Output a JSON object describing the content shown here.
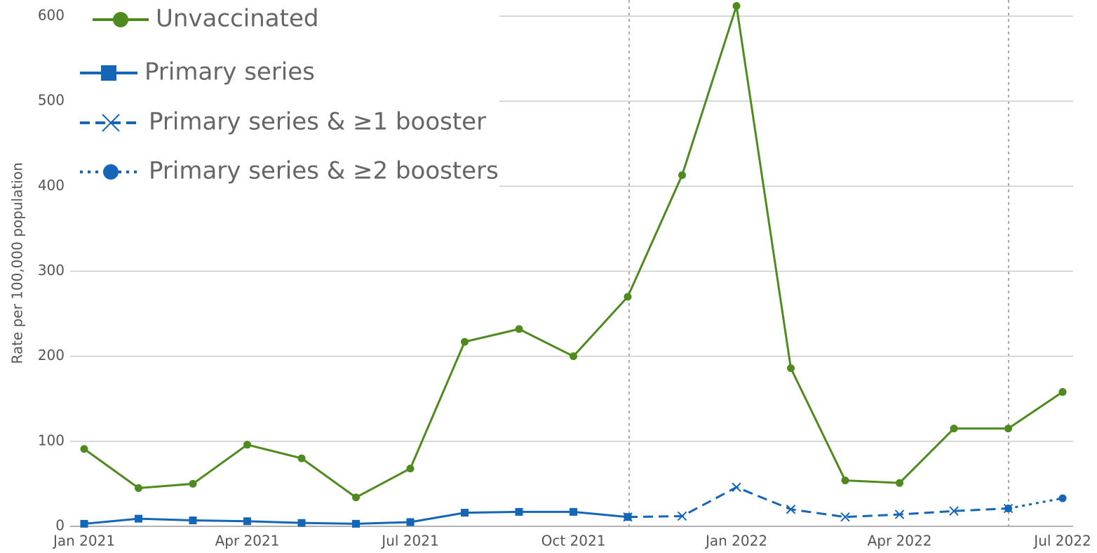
{
  "chart_data": {
    "type": "line",
    "y_label": "Rate per 100,000 population",
    "categories": [
      "Jan 2021",
      null,
      null,
      "Apr 2021",
      null,
      null,
      "Jul 2021",
      null,
      null,
      "Oct 2021",
      null,
      null,
      "Jan 2022",
      null,
      null,
      "Apr 2022",
      null,
      null,
      "Jul 2022"
    ],
    "series": [
      {
        "name": "Unvaccinated",
        "color": "#4f8a1f",
        "style": "solid",
        "marker": "circle",
        "values": [
          91,
          45,
          50,
          96,
          80,
          34,
          68,
          217,
          232,
          200,
          270,
          413,
          612,
          186,
          54,
          51,
          115,
          115,
          158
        ]
      },
      {
        "name": "Primary series",
        "color": "#1565b8",
        "style": "solid",
        "marker": "square",
        "values": [
          3,
          9,
          7,
          6,
          4,
          3,
          5,
          16,
          17,
          17,
          11,
          null,
          null,
          null,
          null,
          null,
          null,
          null,
          null
        ]
      },
      {
        "name": "Primary series & ≥1 booster",
        "color": "#1565b8",
        "style": "dashed",
        "marker": "x",
        "values": [
          null,
          null,
          null,
          null,
          null,
          null,
          null,
          null,
          null,
          null,
          11,
          12,
          46,
          20,
          11,
          14,
          18,
          21,
          null
        ]
      },
      {
        "name": "Primary series & ≥2 boosters",
        "color": "#1565b8",
        "style": "dotted",
        "marker": "circle",
        "values": [
          null,
          null,
          null,
          null,
          null,
          null,
          null,
          null,
          null,
          null,
          null,
          null,
          null,
          null,
          null,
          null,
          null,
          21,
          33
        ]
      }
    ],
    "ylim": [
      0,
      600
    ],
    "yticks": [
      0,
      100,
      200,
      300,
      400,
      500,
      600
    ],
    "grid": true,
    "legend": "upper left"
  }
}
